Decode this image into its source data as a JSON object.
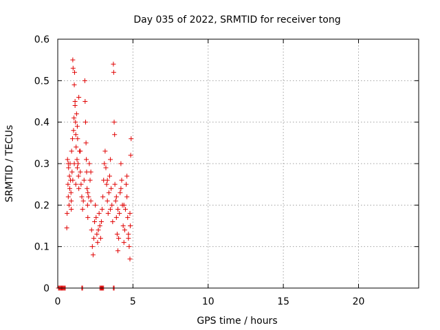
{
  "chart_data": {
    "type": "scatter",
    "title": "Day 035 of 2022, SRMTID for receiver tong",
    "xlabel": "GPS time / hours",
    "ylabel": "SRMTID / TECUs",
    "xlim": [
      0,
      24
    ],
    "ylim": [
      0,
      0.6
    ],
    "xticks": [
      0,
      5,
      10,
      15,
      20
    ],
    "xtick_labels": [
      "0",
      "5",
      "10",
      "15",
      "20"
    ],
    "yticks": [
      0,
      0.1,
      0.2,
      0.3,
      0.4,
      0.5,
      0.6
    ],
    "ytick_labels": [
      "0",
      "0.1",
      "0.2",
      "0.3",
      "0.4",
      "0.5",
      "0.6"
    ],
    "grid": true,
    "marker": "+",
    "color": "#e00000",
    "series": [
      {
        "name": "SRMTID",
        "points": [
          [
            0.05,
            0
          ],
          [
            0.1,
            0
          ],
          [
            0.15,
            0
          ],
          [
            0.2,
            0
          ],
          [
            0.25,
            0
          ],
          [
            0.3,
            0
          ],
          [
            0.35,
            0
          ],
          [
            0.4,
            0
          ],
          [
            0.45,
            0
          ],
          [
            0.5,
            0
          ],
          [
            1.6,
            0
          ],
          [
            1.65,
            0
          ],
          [
            2.8,
            0
          ],
          [
            2.85,
            0
          ],
          [
            2.9,
            0
          ],
          [
            2.95,
            0
          ],
          [
            3.0,
            0
          ],
          [
            3.05,
            0
          ],
          [
            3.7,
            0
          ],
          [
            3.75,
            0
          ],
          [
            0.6,
            0.145
          ],
          [
            0.62,
            0.18
          ],
          [
            0.65,
            0.31
          ],
          [
            0.68,
            0.25
          ],
          [
            0.7,
            0.22
          ],
          [
            0.72,
            0.29
          ],
          [
            0.75,
            0.2
          ],
          [
            0.78,
            0.27
          ],
          [
            0.8,
            0.24
          ],
          [
            0.82,
            0.3
          ],
          [
            0.85,
            0.26
          ],
          [
            0.88,
            0.23
          ],
          [
            0.9,
            0.21
          ],
          [
            0.92,
            0.33
          ],
          [
            0.95,
            0.28
          ],
          [
            0.98,
            0.36
          ],
          [
            1.0,
            0.55
          ],
          [
            1.02,
            0.53
          ],
          [
            1.05,
            0.38
          ],
          [
            1.08,
            0.41
          ],
          [
            1.1,
            0.49
          ],
          [
            1.12,
            0.52
          ],
          [
            1.15,
            0.45
          ],
          [
            1.18,
            0.4
          ],
          [
            1.2,
            0.37
          ],
          [
            1.22,
            0.34
          ],
          [
            1.25,
            0.42
          ],
          [
            1.28,
            0.31
          ],
          [
            1.3,
            0.29
          ],
          [
            1.32,
            0.36
          ],
          [
            1.35,
            0.3
          ],
          [
            1.38,
            0.27
          ],
          [
            1.4,
            0.24
          ],
          [
            1.45,
            0.33
          ],
          [
            1.5,
            0.28
          ],
          [
            1.55,
            0.25
          ],
          [
            1.6,
            0.22
          ],
          [
            1.65,
            0.19
          ],
          [
            1.7,
            0.21
          ],
          [
            1.75,
            0.26
          ],
          [
            1.8,
            0.5
          ],
          [
            1.82,
            0.45
          ],
          [
            1.85,
            0.4
          ],
          [
            1.88,
            0.35
          ],
          [
            1.9,
            0.31
          ],
          [
            1.92,
            0.28
          ],
          [
            1.95,
            0.24
          ],
          [
            1.98,
            0.2
          ],
          [
            2.0,
            0.17
          ],
          [
            2.05,
            0.22
          ],
          [
            2.1,
            0.3
          ],
          [
            2.15,
            0.26
          ],
          [
            2.2,
            0.21
          ],
          [
            2.25,
            0.14
          ],
          [
            2.3,
            0.1
          ],
          [
            2.35,
            0.08
          ],
          [
            2.4,
            0.12
          ],
          [
            2.45,
            0.16
          ],
          [
            2.5,
            0.2
          ],
          [
            2.55,
            0.17
          ],
          [
            2.6,
            0.13
          ],
          [
            2.65,
            0.11
          ],
          [
            2.7,
            0.14
          ],
          [
            2.75,
            0.18
          ],
          [
            2.8,
            0.15
          ],
          [
            2.85,
            0.12
          ],
          [
            2.9,
            0.16
          ],
          [
            2.95,
            0.19
          ],
          [
            3.0,
            0.22
          ],
          [
            3.05,
            0.26
          ],
          [
            3.1,
            0.3
          ],
          [
            3.15,
            0.33
          ],
          [
            3.2,
            0.29
          ],
          [
            3.25,
            0.25
          ],
          [
            3.3,
            0.21
          ],
          [
            3.35,
            0.18
          ],
          [
            3.4,
            0.23
          ],
          [
            3.45,
            0.27
          ],
          [
            3.5,
            0.31
          ],
          [
            3.55,
            0.24
          ],
          [
            3.6,
            0.2
          ],
          [
            3.65,
            0.16
          ],
          [
            3.7,
            0.54
          ],
          [
            3.72,
            0.52
          ],
          [
            3.75,
            0.4
          ],
          [
            3.78,
            0.37
          ],
          [
            3.8,
            0.25
          ],
          [
            3.85,
            0.21
          ],
          [
            3.9,
            0.17
          ],
          [
            3.95,
            0.13
          ],
          [
            4.0,
            0.09
          ],
          [
            4.05,
            0.12
          ],
          [
            4.1,
            0.18
          ],
          [
            4.15,
            0.23
          ],
          [
            4.2,
            0.3
          ],
          [
            4.25,
            0.26
          ],
          [
            4.3,
            0.2
          ],
          [
            4.35,
            0.15
          ],
          [
            4.4,
            0.11
          ],
          [
            4.45,
            0.14
          ],
          [
            4.5,
            0.19
          ],
          [
            4.55,
            0.25
          ],
          [
            4.6,
            0.22
          ],
          [
            4.65,
            0.17
          ],
          [
            4.7,
            0.13
          ],
          [
            4.75,
            0.1
          ],
          [
            4.8,
            0.07
          ],
          [
            4.82,
            0.15
          ],
          [
            4.85,
            0.32
          ],
          [
            4.88,
            0.36
          ],
          [
            1.0,
            0.26
          ],
          [
            1.1,
            0.3
          ],
          [
            1.2,
            0.25
          ],
          [
            0.9,
            0.19
          ],
          [
            0.7,
            0.3
          ],
          [
            1.3,
            0.39
          ],
          [
            1.5,
            0.33
          ],
          [
            2.0,
            0.23
          ],
          [
            2.2,
            0.28
          ],
          [
            3.3,
            0.26
          ],
          [
            3.5,
            0.19
          ],
          [
            3.9,
            0.22
          ],
          [
            4.0,
            0.19
          ],
          [
            4.2,
            0.24
          ],
          [
            4.4,
            0.2
          ],
          [
            4.6,
            0.27
          ],
          [
            4.7,
            0.12
          ],
          [
            4.8,
            0.18
          ],
          [
            1.4,
            0.46
          ],
          [
            1.15,
            0.44
          ]
        ]
      }
    ]
  }
}
